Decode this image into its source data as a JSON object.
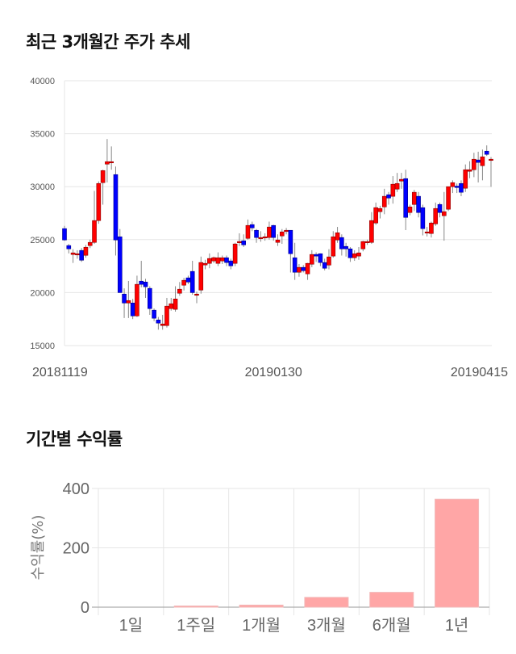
{
  "titles": {
    "price": "최근 3개월간 주가 추세",
    "returns": "기간별 수익률"
  },
  "colors": {
    "up": "#ff0000",
    "down": "#0000ff",
    "wick": "#888888",
    "bar": "#ffa6a6",
    "grid": "#e6e6e6"
  },
  "chart_data": [
    {
      "type": "candlestick",
      "title": "최근 3개월간 주가 추세",
      "ylim": [
        15000,
        40000
      ],
      "yticks": [
        "15000",
        "20000",
        "25000",
        "30000",
        "35000",
        "40000"
      ],
      "xticks": [
        {
          "label": "20181119",
          "index": 0
        },
        {
          "label": "20190130",
          "index": 49
        },
        {
          "label": "20190415",
          "index": 100
        }
      ],
      "grid": true,
      "ohlc": [
        [
          26040,
          26300,
          24900,
          24970
        ],
        [
          24440,
          24600,
          23700,
          24130
        ],
        [
          23600,
          24100,
          22800,
          23750
        ],
        [
          23670,
          24000,
          23200,
          23670
        ],
        [
          23980,
          24200,
          22900,
          23060
        ],
        [
          23520,
          24500,
          23300,
          24280
        ],
        [
          24440,
          25000,
          24200,
          24740
        ],
        [
          24740,
          29600,
          24600,
          26800
        ],
        [
          26800,
          30500,
          26500,
          30300
        ],
        [
          30380,
          31600,
          28300,
          31520
        ],
        [
          32130,
          34500,
          30400,
          32360
        ],
        [
          32360,
          33800,
          31600,
          32360
        ],
        [
          31140,
          31900,
          23500,
          24970
        ],
        [
          25270,
          26000,
          20000,
          20000
        ],
        [
          19860,
          20400,
          17600,
          19020
        ],
        [
          19020,
          21100,
          17600,
          19250
        ],
        [
          19020,
          19400,
          17500,
          17800
        ],
        [
          17800,
          21600,
          17700,
          20780
        ],
        [
          21080,
          23000,
          20500,
          20780
        ],
        [
          21000,
          21300,
          19500,
          20550
        ],
        [
          20400,
          20600,
          17900,
          18490
        ],
        [
          18340,
          18500,
          17300,
          17580
        ],
        [
          17420,
          17700,
          16500,
          17120
        ],
        [
          16890,
          17900,
          16500,
          17040
        ],
        [
          16890,
          19500,
          16700,
          18720
        ],
        [
          18490,
          19500,
          18300,
          18950
        ],
        [
          18420,
          20600,
          18200,
          19400
        ],
        [
          19940,
          21000,
          19700,
          20320
        ],
        [
          20700,
          21400,
          20200,
          21160
        ],
        [
          21390,
          21600,
          20800,
          21000
        ],
        [
          22000,
          23000,
          19800,
          20000
        ],
        [
          19860,
          20100,
          19000,
          19860
        ],
        [
          20240,
          23400,
          19900,
          22840
        ],
        [
          22610,
          23100,
          22200,
          22760
        ],
        [
          22760,
          23700,
          22300,
          23220
        ],
        [
          22990,
          23400,
          22800,
          23300
        ],
        [
          22760,
          23800,
          22500,
          23290
        ],
        [
          22990,
          23500,
          22700,
          23290
        ],
        [
          23290,
          23500,
          22500,
          22840
        ],
        [
          22990,
          23200,
          22200,
          22530
        ],
        [
          22760,
          24700,
          22500,
          24590
        ],
        [
          24800,
          25600,
          24400,
          24820
        ],
        [
          24890,
          25500,
          24300,
          24510
        ],
        [
          25120,
          26900,
          25000,
          26340
        ],
        [
          26420,
          26700,
          25800,
          26110
        ],
        [
          25880,
          26000,
          24700,
          25200
        ],
        [
          25200,
          25800,
          24800,
          25200
        ],
        [
          25200,
          25600,
          24900,
          25270
        ],
        [
          25200,
          26700,
          25000,
          26190
        ],
        [
          26340,
          26400,
          24900,
          25200
        ],
        [
          24740,
          25500,
          24400,
          24970
        ],
        [
          25350,
          26000,
          24600,
          25730
        ],
        [
          25880,
          26100,
          25500,
          25880
        ],
        [
          25880,
          25900,
          21900,
          23670
        ],
        [
          23290,
          24700,
          21200,
          21920
        ],
        [
          21920,
          22700,
          21500,
          22380
        ],
        [
          22380,
          22600,
          21900,
          22070
        ],
        [
          21770,
          22800,
          21200,
          22760
        ],
        [
          22680,
          24000,
          22400,
          23600
        ],
        [
          23600,
          23800,
          22900,
          23450
        ],
        [
          23670,
          23700,
          22500,
          22840
        ],
        [
          22840,
          23200,
          22100,
          22300
        ],
        [
          22600,
          24100,
          22200,
          23370
        ],
        [
          23450,
          25800,
          23300,
          25270
        ],
        [
          24970,
          26200,
          24700,
          25650
        ],
        [
          25200,
          25500,
          23500,
          24130
        ],
        [
          24360,
          24700,
          23400,
          24130
        ],
        [
          24130,
          24300,
          22900,
          23290
        ],
        [
          23290,
          24000,
          23000,
          23670
        ],
        [
          23450,
          24300,
          23100,
          23750
        ],
        [
          24130,
          24900,
          23900,
          24820
        ],
        [
          24820,
          25000,
          24500,
          24820
        ],
        [
          24740,
          27600,
          24600,
          26800
        ],
        [
          26570,
          28500,
          26400,
          28020
        ],
        [
          27640,
          28200,
          27000,
          27940
        ],
        [
          28090,
          29800,
          27400,
          29090
        ],
        [
          29240,
          29500,
          28300,
          28930
        ],
        [
          29090,
          31000,
          28400,
          30230
        ],
        [
          29770,
          31300,
          29500,
          30300
        ],
        [
          30530,
          31300,
          29800,
          30690
        ],
        [
          30760,
          31600,
          25900,
          27100
        ],
        [
          27560,
          28300,
          27300,
          28090
        ],
        [
          28320,
          29700,
          27700,
          29470
        ],
        [
          29090,
          29500,
          27100,
          27560
        ],
        [
          28020,
          28300,
          25400,
          26040
        ],
        [
          25730,
          26200,
          25300,
          25730
        ],
        [
          25580,
          26700,
          25200,
          26570
        ],
        [
          26490,
          28500,
          26300,
          27940
        ],
        [
          28320,
          28500,
          27100,
          27560
        ],
        [
          27260,
          29500,
          24900,
          27640
        ],
        [
          27870,
          30000,
          27700,
          30000
        ],
        [
          30000,
          30600,
          29400,
          30380
        ],
        [
          30050,
          30300,
          29400,
          29920
        ],
        [
          30300,
          30600,
          29100,
          29470
        ],
        [
          29850,
          32100,
          29500,
          31600
        ],
        [
          31450,
          32400,
          30800,
          31600
        ],
        [
          31600,
          33200,
          30900,
          32590
        ],
        [
          32520,
          33300,
          30400,
          32290
        ],
        [
          31980,
          33500,
          30600,
          32820
        ],
        [
          33350,
          33900,
          32900,
          33050
        ],
        [
          32590,
          32800,
          30000,
          32590
        ]
      ]
    },
    {
      "type": "bar",
      "title": "기간별 수익률",
      "ylabel": "수익률(%)",
      "xlabel": "",
      "ylim": [
        0,
        400
      ],
      "yticks": [
        "0",
        "200",
        "400"
      ],
      "categories": [
        "1일",
        "1주일",
        "1개월",
        "3개월",
        "6개월",
        "1년"
      ],
      "values": [
        0,
        4,
        7,
        33,
        50,
        364
      ],
      "grid": true
    }
  ]
}
